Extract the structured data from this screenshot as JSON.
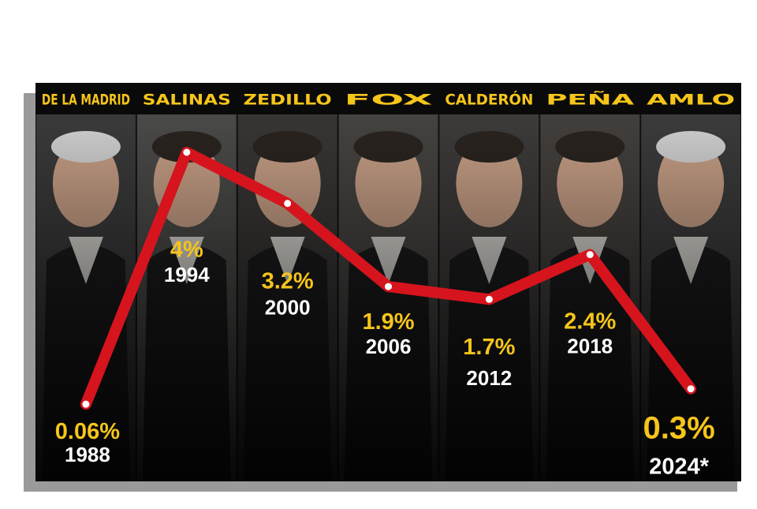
{
  "chart_data": {
    "type": "line",
    "categories": [
      "DE LA MADRID",
      "SALINAS",
      "ZEDILLO",
      "FOX",
      "CALDERÓN",
      "PEÑA",
      "AMLO"
    ],
    "values": [
      0.06,
      4,
      3.2,
      1.9,
      1.7,
      2.4,
      0.3
    ],
    "value_labels": [
      "0.06%",
      "4%",
      "3.2%",
      "1.9%",
      "1.7%",
      "2.4%",
      "0.3%"
    ],
    "years": [
      "1988",
      "1994",
      "2000",
      "2006",
      "2012",
      "2018",
      "2024*"
    ],
    "color": "#d6141d"
  }
}
